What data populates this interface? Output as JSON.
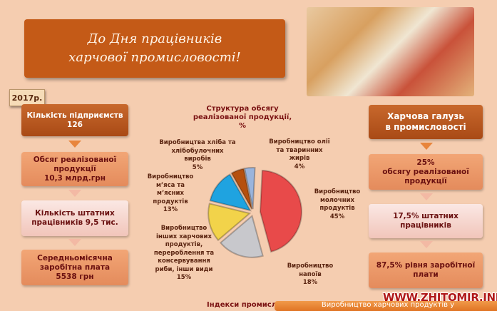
{
  "header": {
    "title_line1": "До Дня працівників",
    "title_line2": "харчової промисловості!"
  },
  "year_tag": "2017р.",
  "left_column": [
    {
      "text": "Кількість підприємств\n126"
    },
    {
      "text": "Обсяг реалізованої продукції\n10,3 млрд.грн"
    },
    {
      "text": "Кількість штатних працівників 9,5 тис."
    },
    {
      "text": "Середньомісячна заробітна плата\n5538 грн"
    }
  ],
  "right_column": [
    {
      "text": "Харчова галузь\nв промисловості"
    },
    {
      "text": "25%\nобсягу реалізованої продукції"
    },
    {
      "text": "17,5% штатних працівників"
    },
    {
      "text": "87,5% рівня заробітної плати"
    }
  ],
  "chart_data": {
    "type": "pie",
    "title": "Структура обсягу реалізованої продукції, %",
    "slices": [
      {
        "label": "Виробництво молочних продуктів",
        "value": 45,
        "display": "45%",
        "color": "#e84a4a"
      },
      {
        "label": "Виробництво напоїв",
        "value": 18,
        "display": "18%",
        "color": "#c8c8cc"
      },
      {
        "label": "Виробництво інших харчових продуктів, перероблення та консервування риби, інши види",
        "value": 15,
        "display": "15%",
        "color": "#f2d34a"
      },
      {
        "label": "Виробництво м’яса та м’ясних продуктів",
        "value": 13,
        "display": "13%",
        "color": "#1fa3e0"
      },
      {
        "label": "Виробництва хліба та хлібобулочних виробів",
        "value": 5,
        "display": "5%",
        "color": "#b5500e"
      },
      {
        "label": "Виробництво олії та тваринних жирів",
        "value": 4,
        "display": "4%",
        "color": "#9ab4dc"
      }
    ]
  },
  "watermark": "WWW.ZHITOMIR.INFO",
  "footer": {
    "left": "Індекси промислової продукції",
    "right": "Виробництво харчових продуктів у"
  }
}
